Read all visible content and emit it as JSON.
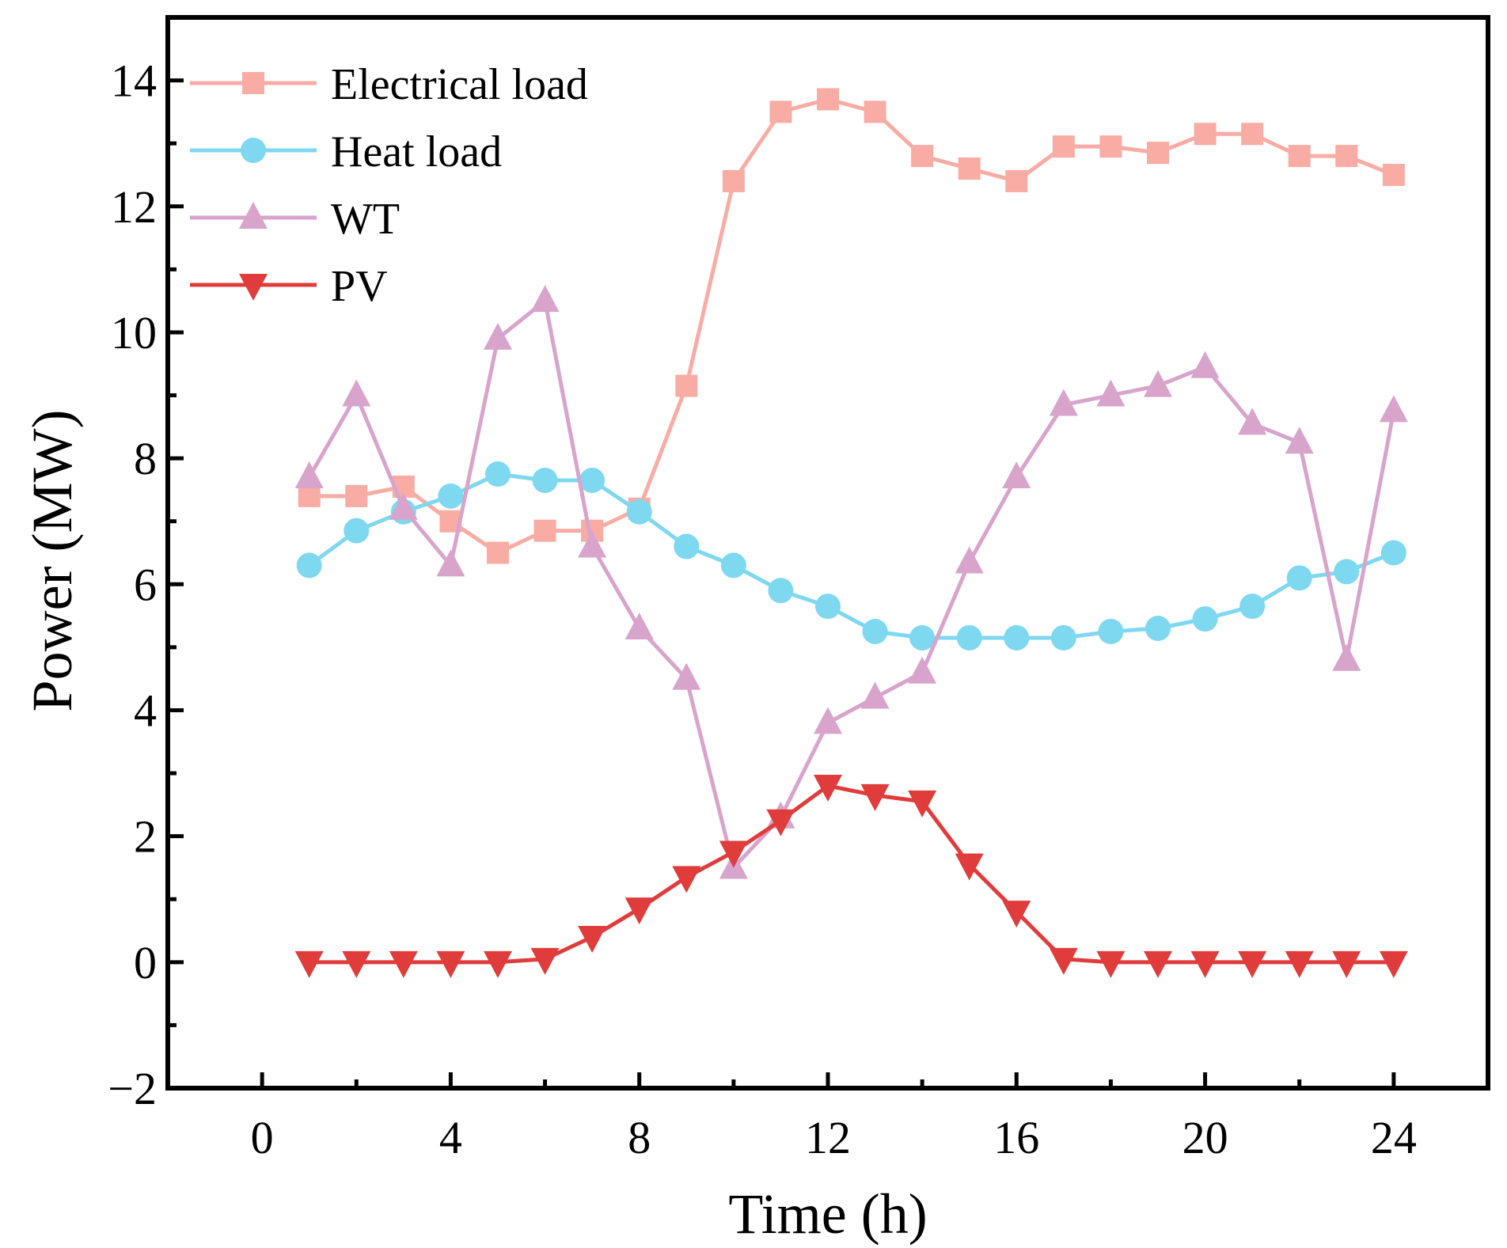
{
  "chart_data": {
    "type": "line",
    "title": "",
    "xlabel": "Time (h)",
    "ylabel": "Power (MW)",
    "xlim": [
      -2,
      26
    ],
    "ylim": [
      -2,
      15
    ],
    "xticks": [
      0,
      4,
      8,
      12,
      16,
      20,
      24
    ],
    "yticks": [
      -2,
      0,
      2,
      4,
      6,
      8,
      10,
      12,
      14
    ],
    "xtick_labels": [
      "0",
      "4",
      "8",
      "12",
      "16",
      "20",
      "24"
    ],
    "ytick_labels": [
      "−2",
      "0",
      "2",
      "4",
      "6",
      "8",
      "10",
      "12",
      "14"
    ],
    "grid": false,
    "legend_position": "top-left",
    "x": [
      1,
      2,
      3,
      4,
      5,
      6,
      7,
      8,
      9,
      10,
      11,
      12,
      13,
      14,
      15,
      16,
      17,
      18,
      19,
      20,
      21,
      22,
      23,
      24
    ],
    "series": [
      {
        "name": "Electrical load",
        "color": "#f8aca4",
        "marker": "square",
        "values": [
          7.4,
          7.4,
          7.55,
          7.0,
          6.5,
          6.85,
          6.85,
          7.2,
          9.15,
          12.4,
          13.5,
          13.7,
          13.5,
          12.8,
          12.6,
          12.4,
          12.95,
          12.95,
          12.85,
          13.15,
          13.15,
          12.8,
          12.8,
          12.5
        ]
      },
      {
        "name": "Heat load",
        "color": "#7dd8f0",
        "marker": "circle",
        "values": [
          6.3,
          6.85,
          7.15,
          7.4,
          7.75,
          7.65,
          7.65,
          7.15,
          6.6,
          6.3,
          5.9,
          5.65,
          5.25,
          5.15,
          5.15,
          5.15,
          5.15,
          5.25,
          5.3,
          5.45,
          5.65,
          6.1,
          6.2,
          6.5
        ]
      },
      {
        "name": "WT",
        "color": "#d8a4cc",
        "marker": "triangle-up",
        "values": [
          7.7,
          9.0,
          7.2,
          6.3,
          9.9,
          10.5,
          6.6,
          5.3,
          4.5,
          1.5,
          2.3,
          3.8,
          4.2,
          4.6,
          6.35,
          7.7,
          8.85,
          9.0,
          9.15,
          9.45,
          8.55,
          8.25,
          4.8,
          8.75
        ]
      },
      {
        "name": "PV",
        "color": "#e03c3c",
        "marker": "triangle-down",
        "values": [
          0.0,
          0.0,
          0.0,
          0.0,
          0.0,
          0.05,
          0.4,
          0.85,
          1.35,
          1.75,
          2.25,
          2.8,
          2.65,
          2.55,
          1.55,
          0.8,
          0.05,
          0.0,
          0.0,
          0.0,
          0.0,
          0.0,
          0.0,
          0.0
        ]
      }
    ]
  }
}
